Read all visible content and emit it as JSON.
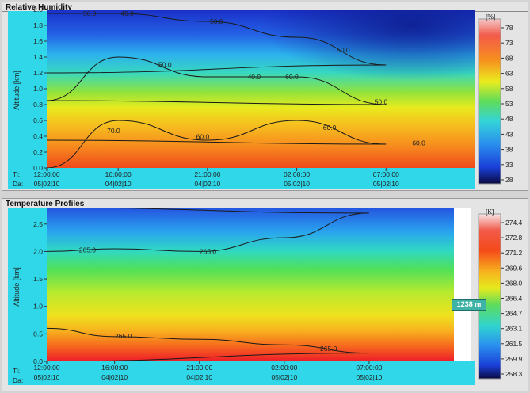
{
  "panels": {
    "top": {
      "title": "Relative Humidity"
    },
    "bottom": {
      "title": "Temperature Profiles"
    }
  },
  "chart_data": [
    {
      "type": "heatmap",
      "title": "Relative Humidity",
      "ylabel": "Altitude [km]",
      "ylim": [
        0,
        2.0
      ],
      "y_ticks": [
        "0.0",
        "0.2",
        "0.4",
        "0.6",
        "0.8",
        "1.0",
        "1.2",
        "1.4",
        "1.6",
        "1.8",
        "2.0"
      ],
      "x_row_labels": [
        "Ti:",
        "Da:"
      ],
      "x_ticks": [
        {
          "time": "16:00:00",
          "date": "04|02|10"
        },
        {
          "time": "21:00:00",
          "date": "04|02|10"
        },
        {
          "time": "02:00:00",
          "date": "05|02|10"
        },
        {
          "time": "07:00:00",
          "date": "05|02|10"
        },
        {
          "time": "12:00:00",
          "date": "05|02|10"
        }
      ],
      "colorbar": {
        "unit": "[%]",
        "ticks": [
          "78",
          "73",
          "68",
          "63",
          "58",
          "53",
          "48",
          "43",
          "38",
          "33",
          "28"
        ]
      },
      "contour_labels": [
        "50.0",
        "50.0",
        "50.0",
        "40.0",
        "40.0",
        "50.0",
        "50.0",
        "60.0",
        "60.0",
        "60.0",
        "60.0",
        "70.0"
      ],
      "contours": [
        {
          "level": "40.0",
          "x": [
            "12:00",
            "16:00",
            "21:00",
            "02:00",
            "07:00",
            "12:00"
          ],
          "y": [
            1.95,
            1.95,
            1.85,
            1.65,
            1.3,
            1.2
          ]
        },
        {
          "level": "50.0",
          "x": [
            "12:00",
            "16:00",
            "21:00",
            "02:00",
            "07:00",
            "12:00"
          ],
          "y": [
            0.85,
            1.4,
            1.15,
            1.15,
            0.8,
            0.85
          ]
        },
        {
          "level": "60.0",
          "x": [
            "12:00",
            "16:00",
            "21:00",
            "02:00",
            "07:00",
            "12:00"
          ],
          "y": [
            0.0,
            0.6,
            0.35,
            0.6,
            0.3,
            0.35
          ]
        }
      ],
      "grid": false
    },
    {
      "type": "heatmap",
      "title": "Temperature Profiles",
      "ylabel": "Altitude [km]",
      "ylim": [
        0,
        2.8
      ],
      "y_ticks": [
        "0.0",
        "0.5",
        "1.0",
        "1.5",
        "2.0",
        "2.5"
      ],
      "x_row_labels": [
        "Ti:",
        "Da:"
      ],
      "x_ticks": [
        {
          "time": "16:00:00",
          "date": "04|02|10"
        },
        {
          "time": "21:00:00",
          "date": "04|02|10"
        },
        {
          "time": "02:00:00",
          "date": "05|02|10"
        },
        {
          "time": "07:00:00",
          "date": "05|02|10"
        },
        {
          "time": "12:00:00",
          "date": "05|02|10"
        }
      ],
      "colorbar": {
        "unit": "[K]",
        "ticks": [
          "274.4",
          "272.8",
          "271.2",
          "269.6",
          "268.0",
          "266.4",
          "264.7",
          "263.1",
          "261.5",
          "259.9",
          "258.3"
        ]
      },
      "contour_labels": [
        "265.0",
        "265.0",
        "265.0",
        "265.0"
      ],
      "contours": [
        {
          "level": "265.0",
          "x": [
            "12:00",
            "16:00",
            "21:00",
            "02:00",
            "07:00",
            "12:00"
          ],
          "y": [
            2.0,
            2.05,
            2.0,
            2.25,
            2.7,
            2.8
          ]
        },
        {
          "level": "lower",
          "x": [
            "12:00",
            "16:00",
            "21:00",
            "02:00",
            "07:00",
            "12:00"
          ],
          "y": [
            0.6,
            0.45,
            0.4,
            0.3,
            0.15,
            0.0
          ]
        }
      ],
      "tooltip": "1238 m",
      "grid": false
    }
  ]
}
